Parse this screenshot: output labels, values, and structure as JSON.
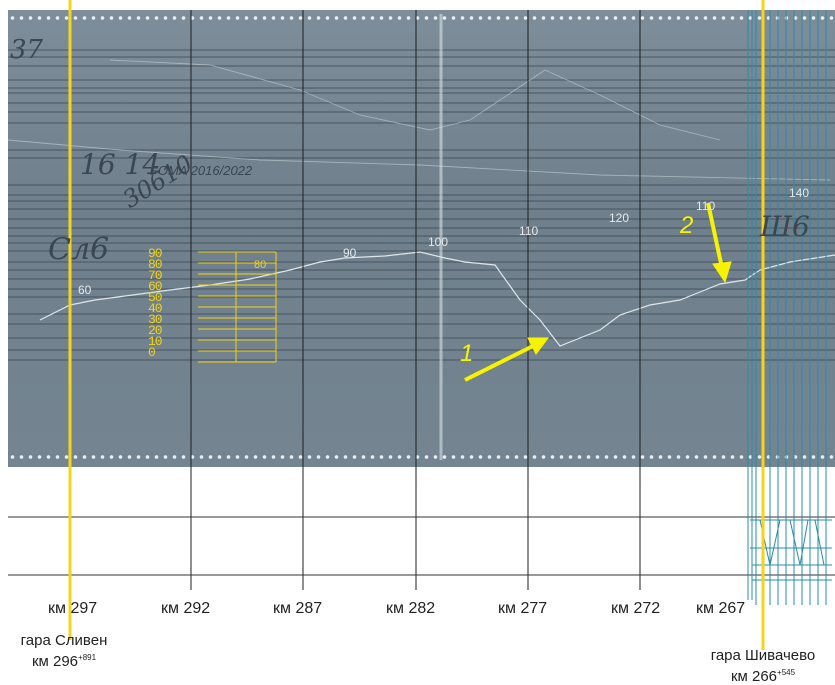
{
  "handwriting": {
    "top_left": "37",
    "number_a": "16 14",
    "number_b": "30610",
    "note_left": "Сл6",
    "note_right": "Ш6"
  },
  "film_label": "FOMA 2016/2022",
  "speed_labels": [
    "60",
    "90",
    "100",
    "110",
    "120",
    "110",
    "140"
  ],
  "gauge": {
    "scale_values": [
      "90",
      "80",
      "70",
      "60",
      "50",
      "40",
      "30",
      "20",
      "10",
      "0"
    ],
    "reading": "80"
  },
  "markers": [
    {
      "label": "1"
    },
    {
      "label": "2"
    }
  ],
  "km_labels": [
    "км 297",
    "км 292",
    "км 287",
    "км 282",
    "км 277",
    "км 272",
    "км 267"
  ],
  "stations": [
    {
      "name": "гара Сливен",
      "km": "км 296",
      "km_plus": "+891"
    },
    {
      "name": "гара Шивачево",
      "km": "км 266",
      "km_plus": "+545"
    }
  ],
  "colors": {
    "film": "#72838f",
    "grid_line": "#1e1e1e",
    "station_marker": "#f3d51b",
    "annotation_arrow": "#f7f200",
    "station_track_lines": "#2a8ca8"
  }
}
